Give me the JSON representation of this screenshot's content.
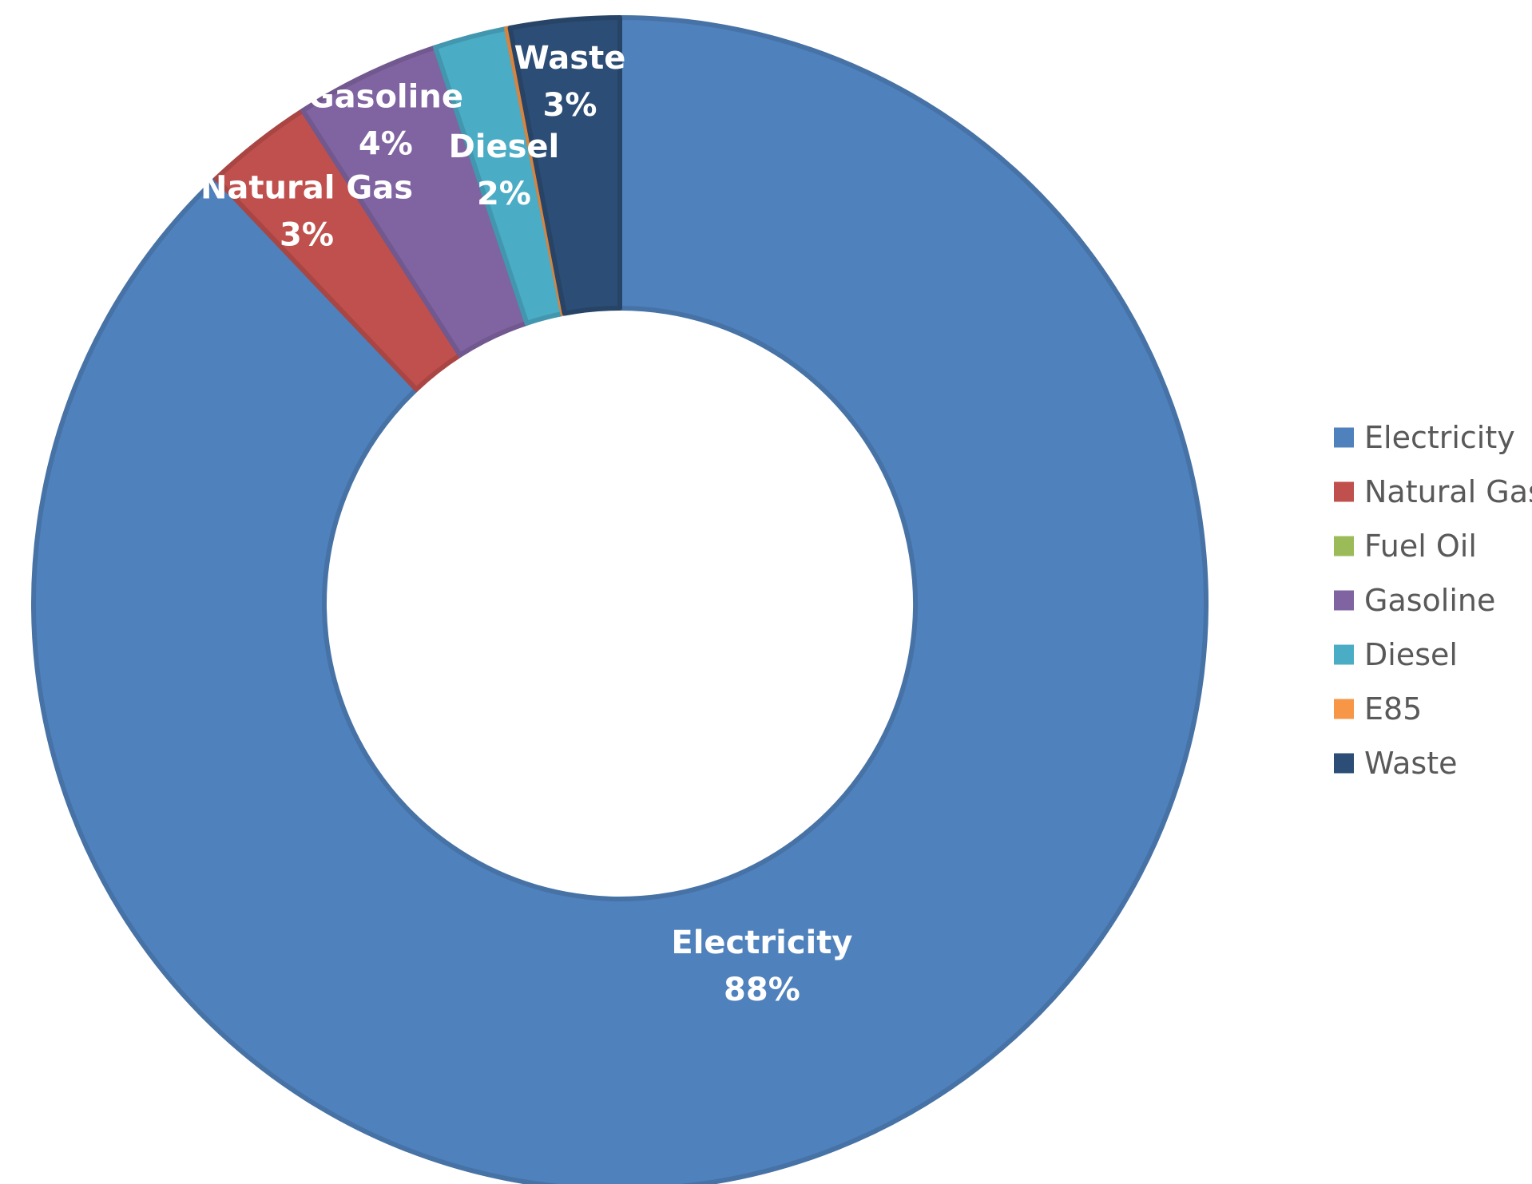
{
  "chart_data": {
    "type": "pie",
    "variant": "doughnut",
    "categories": [
      "Electricity",
      "Natural Gas",
      "Fuel Oil",
      "Gasoline",
      "Diesel",
      "E85",
      "Waste"
    ],
    "values": [
      88,
      3,
      0,
      4,
      2,
      0.1,
      3
    ],
    "colors": [
      "#4F81BD",
      "#C0504D",
      "#9BBB59",
      "#8064A2",
      "#4BACC6",
      "#F79646",
      "#2C4D75"
    ],
    "data_labels": [
      {
        "name": "Electricity",
        "value": "88%"
      },
      {
        "name": "Natural Gas",
        "value": "3%"
      },
      {
        "name": "Gasoline",
        "value": "4%"
      },
      {
        "name": "Diesel",
        "value": "2%"
      },
      {
        "name": "Waste",
        "value": "3%"
      }
    ],
    "legend": {
      "position": "right",
      "entries": [
        "Electricity",
        "Natural Gas",
        "Fuel Oil",
        "Gasoline",
        "Diesel",
        "E85",
        "Waste"
      ]
    }
  }
}
